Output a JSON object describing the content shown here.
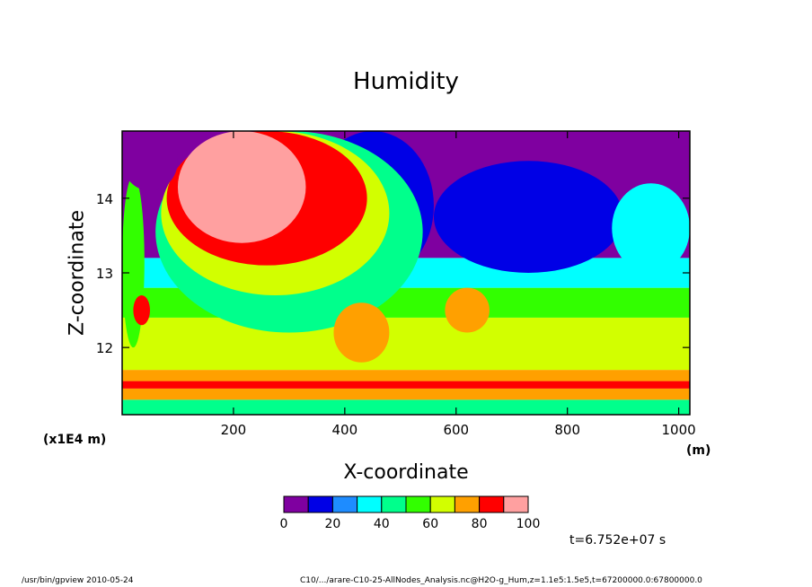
{
  "chart_data": {
    "type": "heatmap",
    "title": "Humidity",
    "xlabel": "X-coordinate",
    "ylabel": "Z-coordinate",
    "x_unit": "(m)",
    "y_unit": "(x1E4 m)",
    "xlim": [
      0,
      1020
    ],
    "ylim": [
      11.1,
      14.9
    ],
    "x_ticks": [
      200,
      400,
      600,
      800,
      1000
    ],
    "y_ticks": [
      12,
      13,
      14
    ],
    "colorbar": {
      "levels": [
        0,
        10,
        20,
        30,
        40,
        50,
        60,
        70,
        80,
        90,
        100
      ],
      "tick_labels": [
        "0",
        "20",
        "40",
        "60",
        "80",
        "100"
      ],
      "colors": [
        "#7f00a0",
        "#0000e6",
        "#1e8cff",
        "#00ffff",
        "#00ff8c",
        "#32ff00",
        "#d2ff00",
        "#ffa000",
        "#ff0000",
        "#ffa0a0"
      ]
    },
    "bands": [
      {
        "z": [
          11.1,
          11.3
        ],
        "value": 45
      },
      {
        "z": [
          11.3,
          11.45
        ],
        "value": 75
      },
      {
        "z": [
          11.45,
          11.55
        ],
        "value": 85
      },
      {
        "z": [
          11.55,
          11.7
        ],
        "value": 75
      },
      {
        "z": [
          11.7,
          12.4
        ],
        "value": 65
      },
      {
        "z": [
          12.4,
          12.8
        ],
        "value": 55
      },
      {
        "z": [
          12.8,
          13.2
        ],
        "value": 35
      },
      {
        "z": [
          13.2,
          14.9
        ],
        "value": 5
      }
    ],
    "regions": [
      {
        "x": [
          560,
          900
        ],
        "z": [
          13.0,
          14.5
        ],
        "value": 15
      },
      {
        "x": [
          880,
          1020
        ],
        "z": [
          13.0,
          14.2
        ],
        "value": 35
      },
      {
        "x": [
          340,
          560
        ],
        "z": [
          12.9,
          14.9
        ],
        "value": 15
      },
      {
        "x": [
          60,
          540
        ],
        "z": [
          12.2,
          14.9
        ],
        "value": 45
      },
      {
        "x": [
          70,
          480
        ],
        "z": [
          12.7,
          14.9
        ],
        "value": 65
      },
      {
        "x": [
          80,
          440
        ],
        "z": [
          13.1,
          14.9
        ],
        "value": 85
      },
      {
        "x": [
          100,
          330
        ],
        "z": [
          13.4,
          14.9
        ],
        "value": 95
      },
      {
        "x": [
          380,
          480
        ],
        "z": [
          11.8,
          12.6
        ],
        "value": 75
      },
      {
        "x": [
          580,
          660
        ],
        "z": [
          12.2,
          12.8
        ],
        "value": 75
      },
      {
        "x": [
          0,
          40
        ],
        "z": [
          12.0,
          14.3
        ],
        "value": 55
      },
      {
        "x": [
          20,
          50
        ],
        "z": [
          12.3,
          12.7
        ],
        "value": 85
      },
      {
        "x": [
          0,
          100
        ],
        "z": [
          14.1,
          14.9
        ],
        "value": 5
      }
    ],
    "timestamp": "t=6.752e+07 s"
  },
  "footer": {
    "left": "/usr/bin/gpview   2010-05-24",
    "right": "C10/.../arare-C10-25-AllNodes_Analysis.nc@H2O-g_Hum,z=1.1e5:1.5e5,t=67200000.0:67800000.0"
  }
}
